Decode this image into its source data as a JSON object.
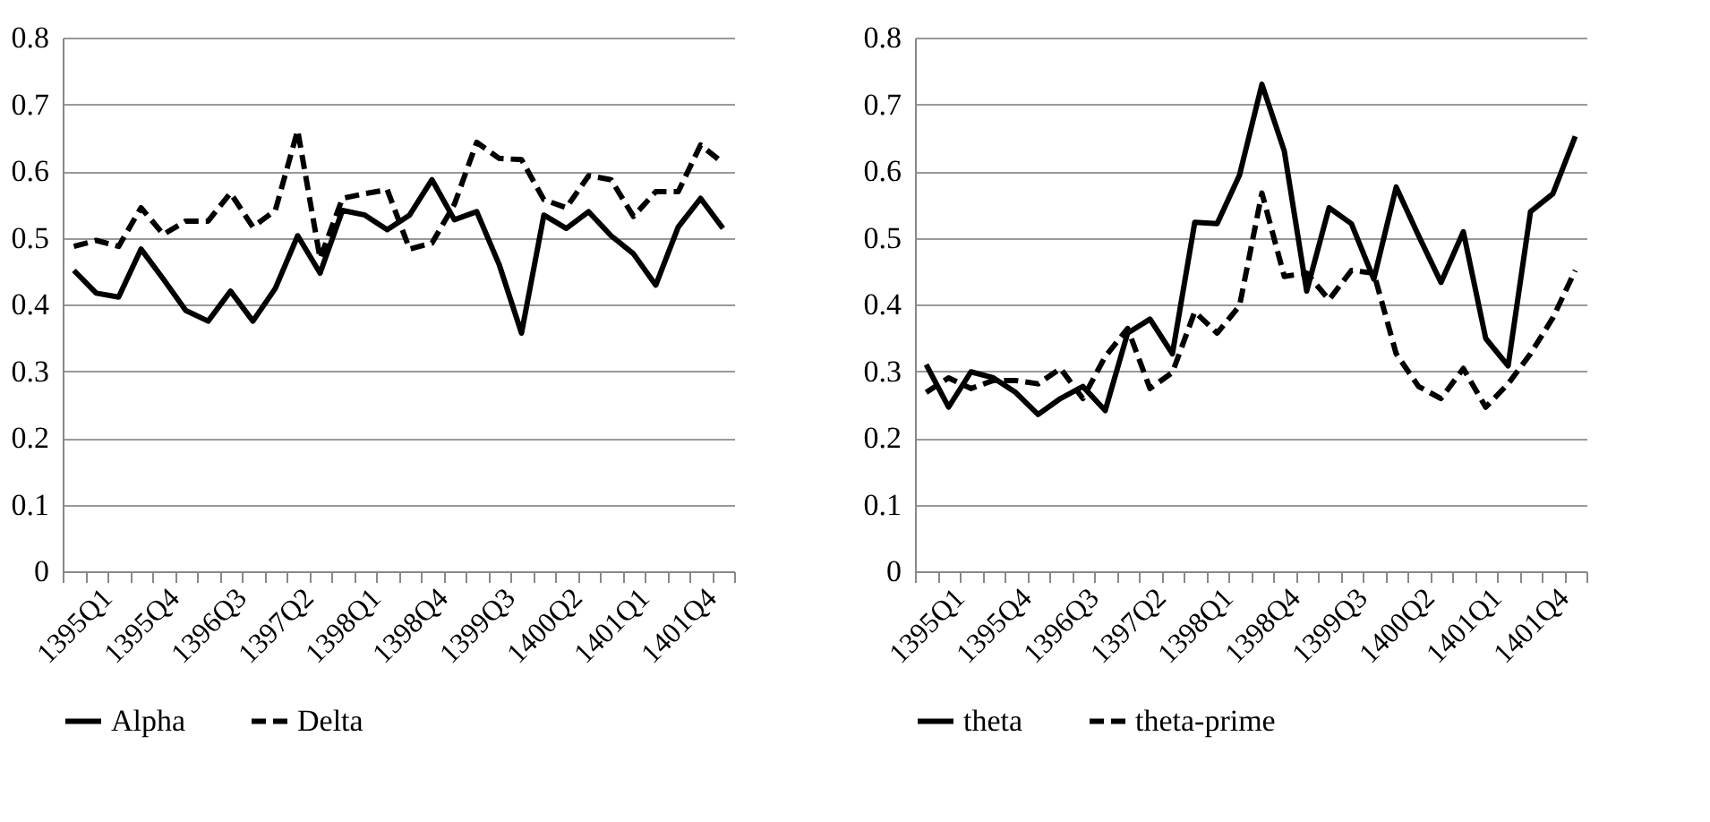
{
  "chart_data": [
    {
      "type": "line",
      "categories": [
        "1395Q1",
        null,
        null,
        "1395Q4",
        null,
        null,
        "1396Q3",
        null,
        null,
        "1397Q2",
        null,
        null,
        "1398Q1",
        null,
        null,
        "1398Q4",
        null,
        null,
        "1399Q3",
        null,
        null,
        "1400Q2",
        null,
        null,
        "1401Q1",
        null,
        null,
        "1401Q4",
        null,
        null
      ],
      "series": [
        {
          "name": "Alpha",
          "color": "#000000",
          "line_style": "solid",
          "values": [
            0.451,
            0.417,
            0.411,
            0.483,
            0.438,
            0.391,
            0.375,
            0.42,
            0.375,
            0.424,
            0.503,
            0.447,
            0.541,
            0.534,
            0.512,
            0.534,
            0.587,
            0.527,
            0.539,
            0.46,
            0.357,
            0.534,
            0.514,
            0.539,
            0.503,
            0.476,
            0.429,
            0.516,
            0.559,
            0.514
          ]
        },
        {
          "name": "Delta",
          "color": "#000000",
          "line_style": "dashed",
          "values": [
            0.487,
            0.496,
            0.487,
            0.545,
            0.505,
            0.525,
            0.525,
            0.567,
            0.516,
            0.541,
            0.661,
            0.469,
            0.559,
            0.566,
            0.572,
            0.483,
            0.492,
            0.55,
            0.643,
            0.619,
            0.617,
            0.557,
            0.545,
            0.593,
            0.587,
            0.532,
            0.569,
            0.569,
            0.639,
            0.612
          ]
        }
      ],
      "ylim": [
        0,
        0.8
      ],
      "yticks": [
        0,
        0.1,
        0.2,
        0.3,
        0.4,
        0.5,
        0.6,
        0.7,
        0.8
      ],
      "grid": "y",
      "legend": "bottom"
    },
    {
      "type": "line",
      "categories": [
        "1395Q1",
        null,
        null,
        "1395Q4",
        null,
        null,
        "1396Q3",
        null,
        null,
        "1397Q2",
        null,
        null,
        "1398Q1",
        null,
        null,
        "1398Q4",
        null,
        null,
        "1399Q3",
        null,
        null,
        "1400Q2",
        null,
        null,
        "1401Q1",
        null,
        null,
        "1401Q4",
        null,
        null
      ],
      "series": [
        {
          "name": "theta",
          "color": "#000000",
          "line_style": "solid",
          "values": [
            0.31,
            0.246,
            0.299,
            0.29,
            0.268,
            0.235,
            0.259,
            0.277,
            0.241,
            0.357,
            0.378,
            0.326,
            0.523,
            0.521,
            0.594,
            0.73,
            0.63,
            0.42,
            0.545,
            0.521,
            0.438,
            0.576,
            0.503,
            0.433,
            0.509,
            0.349,
            0.308,
            0.539,
            0.566,
            0.652
          ]
        },
        {
          "name": "theta-prime",
          "color": "#000000",
          "line_style": "dashed",
          "values": [
            0.268,
            0.29,
            0.274,
            0.286,
            0.286,
            0.281,
            0.304,
            0.259,
            0.322,
            0.364,
            0.274,
            0.298,
            0.389,
            0.357,
            0.398,
            0.567,
            0.442,
            0.447,
            0.407,
            0.451,
            0.447,
            0.326,
            0.277,
            0.259,
            0.304,
            0.246,
            0.281,
            0.326,
            0.38,
            0.451
          ]
        }
      ],
      "ylim": [
        0,
        0.8
      ],
      "yticks": [
        0,
        0.1,
        0.2,
        0.3,
        0.4,
        0.5,
        0.6,
        0.7,
        0.8
      ],
      "grid": "y",
      "legend": "bottom"
    }
  ]
}
